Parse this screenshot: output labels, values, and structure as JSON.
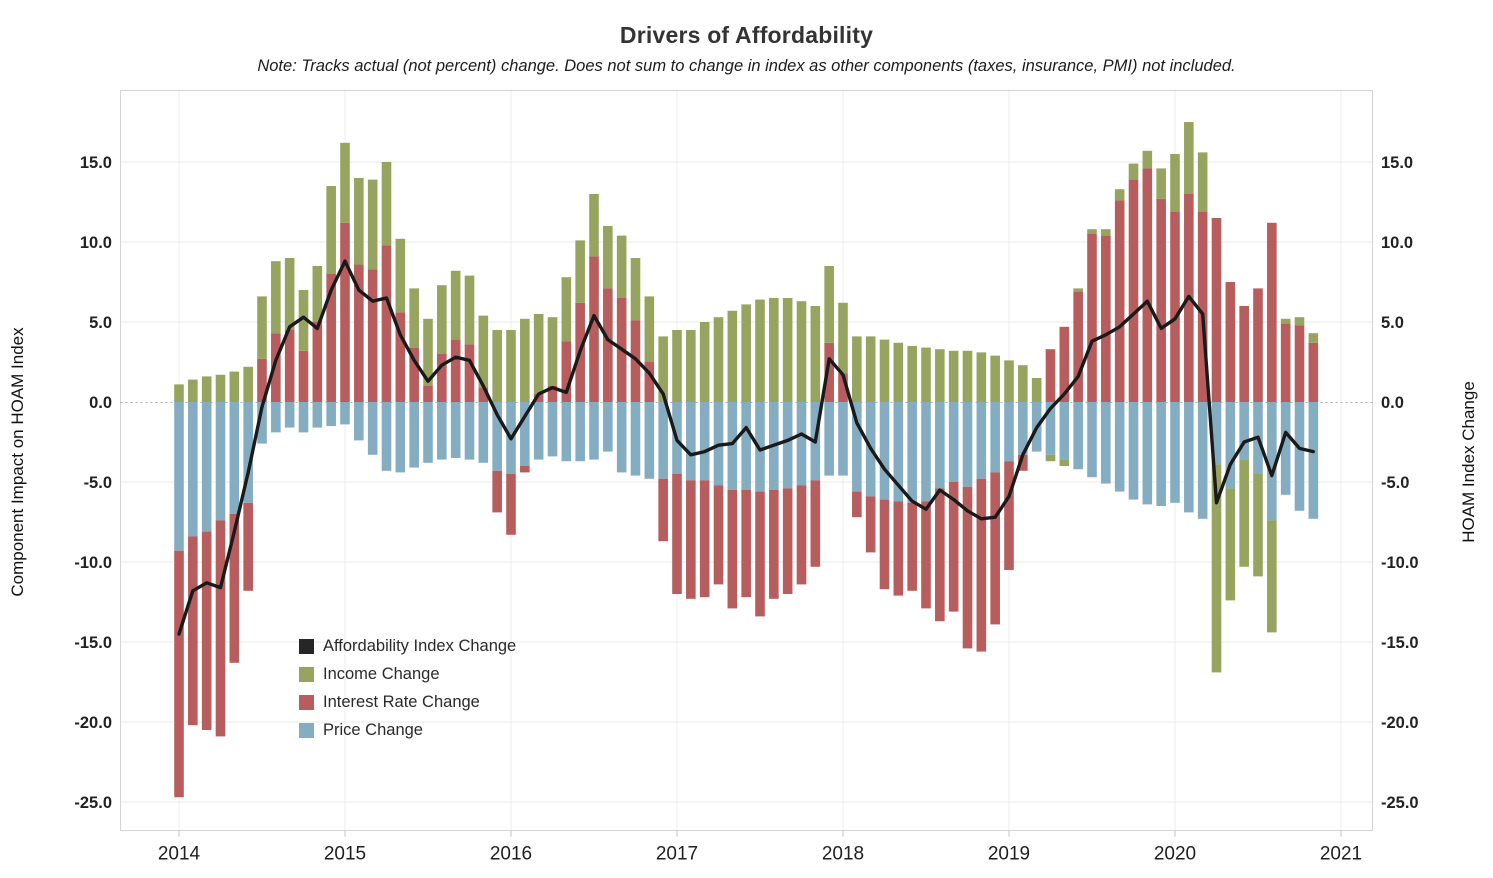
{
  "page": {
    "title": "Drivers of Affordability",
    "subtitle": "Note: Tracks actual (not percent) change. Does not sum to change in index as other components (taxes, insurance, PMI) not included."
  },
  "axes": {
    "left_title": "Component Impact on HOAM Index",
    "right_title": "HOAM Index Change",
    "y_ticks": [
      15,
      10,
      5,
      0,
      -5,
      -10,
      -15,
      -20,
      -25
    ],
    "x_ticks": [
      "2014",
      "2015",
      "2016",
      "2017",
      "2018",
      "2019",
      "2020",
      "2021"
    ]
  },
  "legend": {
    "items": [
      {
        "label": "Affordability Index Change",
        "color": "#262626"
      },
      {
        "label": "Income Change",
        "color": "#97a45f"
      },
      {
        "label": "Interest Rate Change",
        "color": "#b75d5e"
      },
      {
        "label": "Price Change",
        "color": "#85adc2"
      }
    ]
  },
  "chart_data": {
    "type": "combo-stacked-bar-line",
    "title": "Drivers of Affordability",
    "x_start": "2014-01",
    "x_interval": "month",
    "n_points": 83,
    "xlabel": "",
    "ylabel_left": "Component Impact on HOAM Index",
    "ylabel_right": "HOAM Index Change",
    "ylim": [
      -27.0,
      19.5
    ],
    "grid": true,
    "zero_line": "dotted",
    "legend_position": "inside-bottom-left",
    "stack_order_positive": [
      "Interest Rate Change",
      "Income Change"
    ],
    "stack_order_negative": [
      "Price Change",
      "Interest Rate Change",
      "Income Change"
    ],
    "series": [
      {
        "name": "Affordability Index Change",
        "type": "line",
        "color": "#1a1a1a",
        "values": [
          -14.5,
          -11.8,
          -11.3,
          -11.6,
          -8.1,
          -4.4,
          -0.3,
          2.6,
          4.7,
          5.3,
          4.6,
          7.0,
          8.8,
          7.0,
          6.3,
          6.5,
          4.2,
          2.6,
          1.3,
          2.3,
          2.8,
          2.6,
          1.0,
          -0.8,
          -2.3,
          -0.9,
          0.5,
          0.9,
          0.6,
          3.2,
          5.4,
          3.9,
          3.3,
          2.7,
          1.8,
          0.5,
          -2.4,
          -3.3,
          -3.1,
          -2.7,
          -2.6,
          -1.6,
          -3.0,
          -2.7,
          -2.4,
          -2.0,
          -2.5,
          2.7,
          1.7,
          -1.3,
          -2.9,
          -4.2,
          -5.2,
          -6.2,
          -6.7,
          -5.5,
          -6.1,
          -6.8,
          -7.3,
          -7.2,
          -5.9,
          -3.3,
          -1.6,
          -0.4,
          0.5,
          1.6,
          3.8,
          4.2,
          4.7,
          5.5,
          6.3,
          4.6,
          5.2,
          6.6,
          5.5,
          -6.3,
          -3.9,
          -2.5,
          -2.2,
          -4.6,
          -1.9,
          -2.9,
          -3.1
        ]
      },
      {
        "name": "Income Change",
        "type": "bar",
        "color": "#97a45f",
        "values": [
          1.1,
          1.4,
          1.6,
          1.7,
          1.9,
          2.2,
          3.9,
          4.5,
          4.5,
          3.8,
          3.5,
          5.5,
          5.0,
          5.4,
          5.6,
          5.2,
          4.6,
          3.7,
          4.2,
          4.3,
          4.3,
          4.3,
          4.5,
          4.5,
          4.5,
          5.2,
          5.0,
          4.3,
          4.0,
          3.9,
          3.9,
          3.9,
          3.9,
          3.9,
          4.1,
          4.1,
          4.5,
          4.5,
          5.0,
          5.3,
          5.7,
          6.1,
          6.4,
          6.5,
          6.5,
          6.3,
          6.0,
          4.8,
          4.4,
          4.1,
          4.1,
          3.9,
          3.7,
          3.5,
          3.4,
          3.3,
          3.2,
          3.2,
          3.1,
          2.9,
          2.6,
          2.3,
          1.5,
          -0.4,
          -0.4,
          0.2,
          0.3,
          0.4,
          0.7,
          1.0,
          1.1,
          1.9,
          3.6,
          4.5,
          3.7,
          -13.0,
          -7.0,
          -6.7,
          -6.4,
          -7.0,
          0.3,
          0.5,
          0.6
        ]
      },
      {
        "name": "Interest Rate Change",
        "type": "bar",
        "color": "#b75d5e",
        "values": [
          -15.4,
          -11.8,
          -12.4,
          -13.5,
          -9.3,
          -5.5,
          2.7,
          4.3,
          4.5,
          3.2,
          5.0,
          8.0,
          11.2,
          8.6,
          8.3,
          9.8,
          5.6,
          3.4,
          1.0,
          3.0,
          3.9,
          3.6,
          0.9,
          -2.6,
          -3.8,
          -0.4,
          0.5,
          1.0,
          3.8,
          6.2,
          9.1,
          7.1,
          6.5,
          5.1,
          2.5,
          -3.9,
          -7.5,
          -7.4,
          -7.3,
          -6.2,
          -7.4,
          -6.7,
          -7.8,
          -6.8,
          -6.6,
          -6.2,
          -5.4,
          3.7,
          1.8,
          -1.6,
          -3.5,
          -5.6,
          -5.9,
          -5.5,
          -6.7,
          -8.3,
          -8.1,
          -10.1,
          -10.8,
          -9.5,
          -6.8,
          -1.0,
          0.0,
          3.3,
          4.7,
          6.9,
          10.5,
          10.4,
          12.6,
          13.9,
          14.6,
          12.7,
          11.9,
          13.0,
          11.9,
          11.5,
          7.5,
          6.0,
          7.1,
          11.2,
          4.9,
          4.8,
          3.7
        ]
      },
      {
        "name": "Price Change",
        "type": "bar",
        "color": "#85adc2",
        "values": [
          -9.3,
          -8.4,
          -8.1,
          -7.4,
          -7.0,
          -6.3,
          -2.6,
          -1.9,
          -1.6,
          -1.9,
          -1.6,
          -1.5,
          -1.4,
          -2.4,
          -3.3,
          -4.3,
          -4.4,
          -4.1,
          -3.8,
          -3.6,
          -3.5,
          -3.6,
          -3.8,
          -4.3,
          -4.5,
          -4.0,
          -3.6,
          -3.4,
          -3.7,
          -3.7,
          -3.6,
          -3.1,
          -4.4,
          -4.6,
          -4.8,
          -4.8,
          -4.5,
          -4.9,
          -4.9,
          -5.2,
          -5.5,
          -5.5,
          -5.6,
          -5.5,
          -5.4,
          -5.2,
          -4.9,
          -4.6,
          -4.6,
          -5.6,
          -5.9,
          -6.1,
          -6.2,
          -6.3,
          -6.2,
          -5.4,
          -5.0,
          -5.3,
          -4.8,
          -4.4,
          -3.7,
          -3.3,
          -3.1,
          -3.3,
          -3.6,
          -4.2,
          -4.7,
          -5.1,
          -5.6,
          -6.1,
          -6.4,
          -6.5,
          -6.3,
          -6.9,
          -7.3,
          -3.9,
          -5.4,
          -3.6,
          -4.5,
          -7.4,
          -5.8,
          -6.8,
          -7.3
        ]
      }
    ]
  }
}
